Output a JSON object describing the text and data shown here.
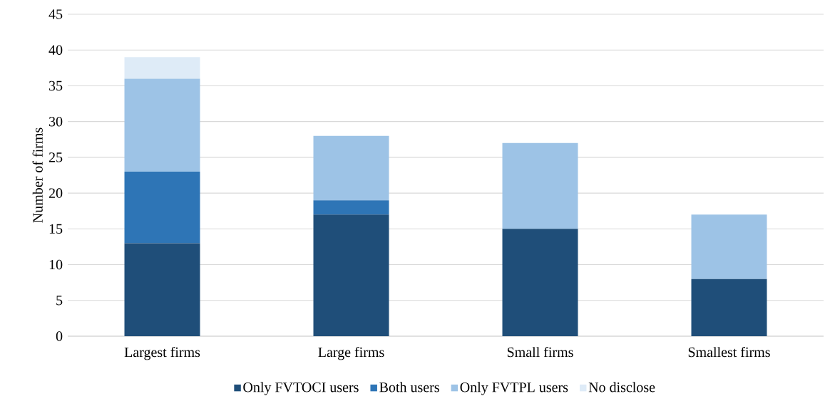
{
  "chart_data": {
    "type": "bar",
    "stacked": true,
    "ylabel": "Number of firms",
    "categories": [
      "Largest firms",
      "Large firms",
      "Small firms",
      "Smallest firms"
    ],
    "series": [
      {
        "name": "Only FVTOCI users",
        "color": "#1f4e79",
        "values": [
          13,
          17,
          15,
          8
        ]
      },
      {
        "name": "Both users",
        "color": "#2e75b6",
        "values": [
          10,
          2,
          0,
          0
        ]
      },
      {
        "name": "Only FVTPL users",
        "color": "#9dc3e6",
        "values": [
          13,
          9,
          12,
          9
        ]
      },
      {
        "name": "No disclose",
        "color": "#deebf7",
        "values": [
          3,
          0,
          0,
          0
        ]
      }
    ],
    "ylim": [
      0,
      45
    ],
    "yticks": [
      0,
      5,
      10,
      15,
      20,
      25,
      30,
      35,
      40,
      45
    ],
    "grid": "y",
    "legend": "bottom"
  }
}
